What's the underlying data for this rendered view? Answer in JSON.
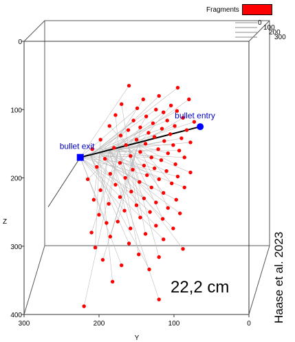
{
  "legend": {
    "label": "Fragments",
    "color": "#ff0000"
  },
  "scale_label": "22,2 cm",
  "citation": "Haase et al. 2023",
  "chart_data": {
    "type": "scatter",
    "title": "",
    "axes": {
      "x": {
        "label": "Y",
        "ticks": [
          300,
          200,
          100,
          0
        ],
        "range": [
          300,
          0
        ]
      },
      "y": {
        "label": "Z",
        "ticks": [
          0,
          100,
          200,
          300,
          400
        ],
        "range": [
          0,
          400
        ]
      },
      "depth": {
        "label": "",
        "ticks": [
          0,
          100,
          200,
          300
        ]
      }
    },
    "grid": false,
    "legend_placement": "top-right",
    "series": [
      {
        "name": "Fragments",
        "color": "#ff0000",
        "points": [
          [
            160,
            65
          ],
          [
            95,
            68
          ],
          [
            120,
            80
          ],
          [
            141,
            85
          ],
          [
            80,
            85
          ],
          [
            170,
            92
          ],
          [
            104,
            94
          ],
          [
            149,
            98
          ],
          [
            124,
            100
          ],
          [
            96,
            102
          ],
          [
            114,
            104
          ],
          [
            178,
            108
          ],
          [
            137,
            110
          ],
          [
            88,
            112
          ],
          [
            109,
            116
          ],
          [
            154,
            116
          ],
          [
            73,
            118
          ],
          [
            128,
            120
          ],
          [
            99,
            124
          ],
          [
            186,
            124
          ],
          [
            145,
            126
          ],
          [
            116,
            128
          ],
          [
            161,
            130
          ],
          [
            83,
            130
          ],
          [
            134,
            134
          ],
          [
            105,
            136
          ],
          [
            171,
            138
          ],
          [
            126,
            140
          ],
          [
            90,
            142
          ],
          [
            150,
            144
          ],
          [
            198,
            144
          ],
          [
            113,
            146
          ],
          [
            78,
            148
          ],
          [
            138,
            150
          ],
          [
            101,
            152
          ],
          [
            164,
            152
          ],
          [
            180,
            156
          ],
          [
            121,
            158
          ],
          [
            93,
            160
          ],
          [
            209,
            158
          ],
          [
            145,
            162
          ],
          [
            108,
            164
          ],
          [
            158,
            168
          ],
          [
            130,
            170
          ],
          [
            86,
            170
          ],
          [
            192,
            172
          ],
          [
            117,
            174
          ],
          [
            172,
            178
          ],
          [
            98,
            180
          ],
          [
            140,
            182
          ],
          [
            203,
            184
          ],
          [
            126,
            186
          ],
          [
            155,
            188
          ],
          [
            110,
            190
          ],
          [
            78,
            192
          ],
          [
            185,
            194
          ],
          [
            136,
            196
          ],
          [
            95,
            198
          ],
          [
            165,
            200
          ],
          [
            120,
            202
          ],
          [
            215,
            202
          ],
          [
            146,
            206
          ],
          [
            103,
            208
          ],
          [
            178,
            210
          ],
          [
            130,
            214
          ],
          [
            86,
            214
          ],
          [
            198,
            218
          ],
          [
            157,
            220
          ],
          [
            114,
            222
          ],
          [
            172,
            228
          ],
          [
            140,
            230
          ],
          [
            97,
            232
          ],
          [
            207,
            232
          ],
          [
            124,
            236
          ],
          [
            187,
            238
          ],
          [
            150,
            240
          ],
          [
            108,
            244
          ],
          [
            166,
            248
          ],
          [
            132,
            250
          ],
          [
            92,
            252
          ],
          [
            200,
            254
          ],
          [
            145,
            258
          ],
          [
            115,
            260
          ],
          [
            175,
            264
          ],
          [
            190,
            266
          ],
          [
            124,
            270
          ],
          [
            101,
            274
          ],
          [
            158,
            274
          ],
          [
            210,
            280
          ],
          [
            138,
            282
          ],
          [
            185,
            286
          ],
          [
            114,
            290
          ],
          [
            160,
            296
          ],
          [
            205,
            302
          ],
          [
            88,
            304
          ],
          [
            147,
            312
          ],
          [
            120,
            316
          ],
          [
            195,
            320
          ],
          [
            170,
            328
          ],
          [
            133,
            334
          ],
          [
            182,
            352
          ],
          [
            120,
            378
          ],
          [
            220,
            388
          ]
        ]
      }
    ],
    "bullet_path": {
      "color": "#0000cc",
      "entry": {
        "label": "bullet entry",
        "y": 65,
        "z": 125
      },
      "exit": {
        "label": "bullet exit",
        "y": 225,
        "z": 170
      }
    }
  }
}
